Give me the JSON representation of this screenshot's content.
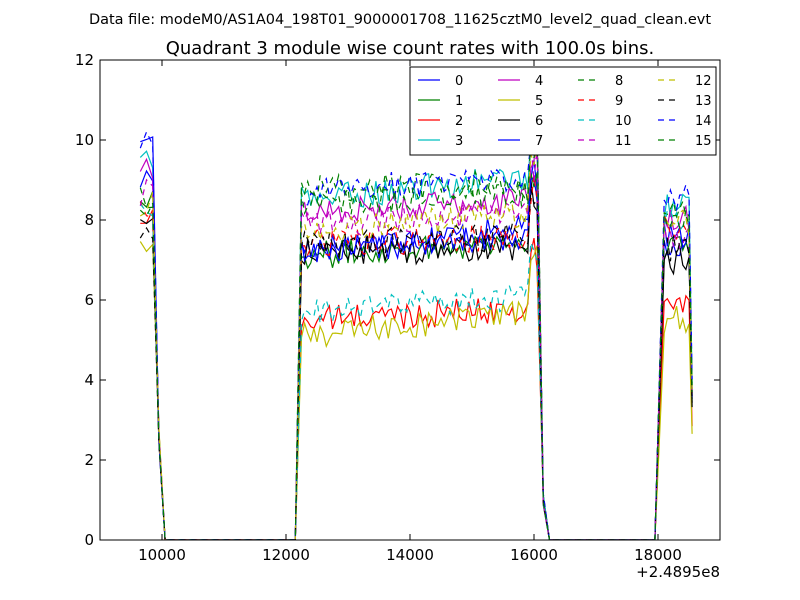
{
  "chart_data": {
    "type": "line",
    "suptitle": "Data file: modeM0/AS1A04_198T01_9000001708_11625cztM0_level2_quad_clean.evt",
    "title": "Quadrant 3 module wise count rates with 100.0s bins.",
    "xlabel": "",
    "ylabel": "",
    "x_offset_label": "+2.4895e8",
    "xlim": [
      9000,
      19000
    ],
    "ylim": [
      0,
      12
    ],
    "xticks": [
      10000,
      12000,
      14000,
      16000,
      18000
    ],
    "xtick_labels": [
      "10000",
      "12000",
      "14000",
      "16000",
      "18000"
    ],
    "yticks": [
      0,
      2,
      4,
      6,
      8,
      10,
      12
    ],
    "ytick_labels": [
      "0",
      "2",
      "4",
      "6",
      "8",
      "10",
      "12"
    ],
    "legend_position": "top-right",
    "grid": false,
    "segments": [
      {
        "start": 9650,
        "end": 9850
      },
      {
        "start": 12250,
        "end": 16050
      },
      {
        "start": 18100,
        "end": 18550
      }
    ],
    "gap_points": [
      9950,
      10050,
      12150,
      16150,
      16250,
      17950,
      18050
    ],
    "series": [
      {
        "name": "0",
        "color": "#0000ff",
        "dash": false,
        "seg1": 9.0,
        "plateau": 7.3,
        "rise": 0.5,
        "seg3": 7.4
      },
      {
        "name": "1",
        "color": "#008000",
        "dash": false,
        "seg1": 8.6,
        "plateau": 7.1,
        "rise": 0.4,
        "seg3": 7.3
      },
      {
        "name": "2",
        "color": "#ff0000",
        "dash": false,
        "seg1": 8.0,
        "plateau": 5.5,
        "rise": 0.3,
        "seg3": 5.9
      },
      {
        "name": "3",
        "color": "#00bfbf",
        "dash": false,
        "seg1": 9.6,
        "plateau": 8.5,
        "rise": 0.6,
        "seg3": 8.3
      },
      {
        "name": "4",
        "color": "#bf00bf",
        "dash": false,
        "seg1": 9.2,
        "plateau": 8.2,
        "rise": 0.3,
        "seg3": 8.0
      },
      {
        "name": "5",
        "color": "#bfbf00",
        "dash": false,
        "seg1": 7.4,
        "plateau": 5.1,
        "rise": 0.6,
        "seg3": 5.5
      },
      {
        "name": "6",
        "color": "#000000",
        "dash": false,
        "seg1": 7.9,
        "plateau": 7.2,
        "rise": 0.1,
        "seg3": 7.0
      },
      {
        "name": "7",
        "color": "#0000ff",
        "dash": false,
        "seg1": 9.8,
        "plateau": 7.2,
        "rise": 0.4,
        "seg3": 7.6
      },
      {
        "name": "8",
        "color": "#008000",
        "dash": true,
        "seg1": 8.6,
        "plateau": 8.8,
        "rise": 0.1,
        "seg3": 8.2
      },
      {
        "name": "9",
        "color": "#ff0000",
        "dash": true,
        "seg1": 8.2,
        "plateau": 7.4,
        "rise": 0.2,
        "seg3": 7.8
      },
      {
        "name": "10",
        "color": "#00bfbf",
        "dash": true,
        "seg1": 8.1,
        "plateau": 5.7,
        "rise": 0.4,
        "seg3": 7.9
      },
      {
        "name": "11",
        "color": "#bf00bf",
        "dash": true,
        "seg1": 8.7,
        "plateau": 7.9,
        "rise": 0.3,
        "seg3": 7.6
      },
      {
        "name": "12",
        "color": "#bfbf00",
        "dash": true,
        "seg1": 8.4,
        "plateau": 7.7,
        "rise": 0.5,
        "seg3": 7.9
      },
      {
        "name": "13",
        "color": "#000000",
        "dash": true,
        "seg1": 7.8,
        "plateau": 7.4,
        "rise": 0.2,
        "seg3": 7.3
      },
      {
        "name": "14",
        "color": "#0000ff",
        "dash": true,
        "seg1": 10.0,
        "plateau": 8.7,
        "rise": 0.4,
        "seg3": 8.6
      },
      {
        "name": "15",
        "color": "#008000",
        "dash": true,
        "seg1": 8.4,
        "plateau": 8.4,
        "rise": 0.3,
        "seg3": 7.9
      }
    ]
  }
}
